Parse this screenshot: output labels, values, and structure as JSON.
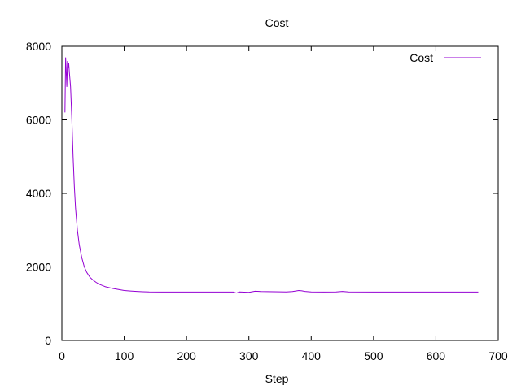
{
  "chart_data": {
    "type": "line",
    "title": "Cost",
    "xlabel": "Step",
    "ylabel": "",
    "xlim": [
      0,
      700
    ],
    "ylim": [
      0,
      8000
    ],
    "xticks": [
      0,
      100,
      200,
      300,
      400,
      500,
      600,
      700
    ],
    "yticks": [
      0,
      2000,
      4000,
      6000,
      8000
    ],
    "xtick_labels": [
      "0",
      "100",
      "200",
      "300",
      "400",
      "500",
      "600",
      "700"
    ],
    "ytick_labels": [
      "0",
      "2000",
      "4000",
      "6000",
      "8000"
    ],
    "grid": false,
    "legend": {
      "position": "top-right"
    },
    "series": [
      {
        "name": "Cost",
        "color": "#9400d3",
        "x": [
          5,
          6,
          7,
          8,
          9,
          10,
          11,
          12,
          14,
          16,
          18,
          20,
          22,
          25,
          28,
          32,
          36,
          40,
          45,
          50,
          55,
          60,
          70,
          80,
          90,
          100,
          110,
          120,
          130,
          140,
          160,
          200,
          240,
          275,
          280,
          285,
          300,
          310,
          320,
          340,
          360,
          370,
          380,
          385,
          390,
          400,
          420,
          440,
          450,
          460,
          500,
          550,
          600,
          650,
          668
        ],
        "y": [
          6200,
          7700,
          7300,
          6900,
          7600,
          7400,
          7550,
          7300,
          6900,
          6000,
          5000,
          4200,
          3600,
          3000,
          2600,
          2250,
          2000,
          1850,
          1720,
          1640,
          1580,
          1530,
          1460,
          1420,
          1390,
          1360,
          1345,
          1335,
          1325,
          1320,
          1318,
          1317,
          1317,
          1317,
          1290,
          1320,
          1310,
          1340,
          1330,
          1325,
          1320,
          1330,
          1360,
          1350,
          1335,
          1320,
          1318,
          1320,
          1335,
          1320,
          1317,
          1317,
          1317,
          1317,
          1317
        ]
      }
    ]
  }
}
